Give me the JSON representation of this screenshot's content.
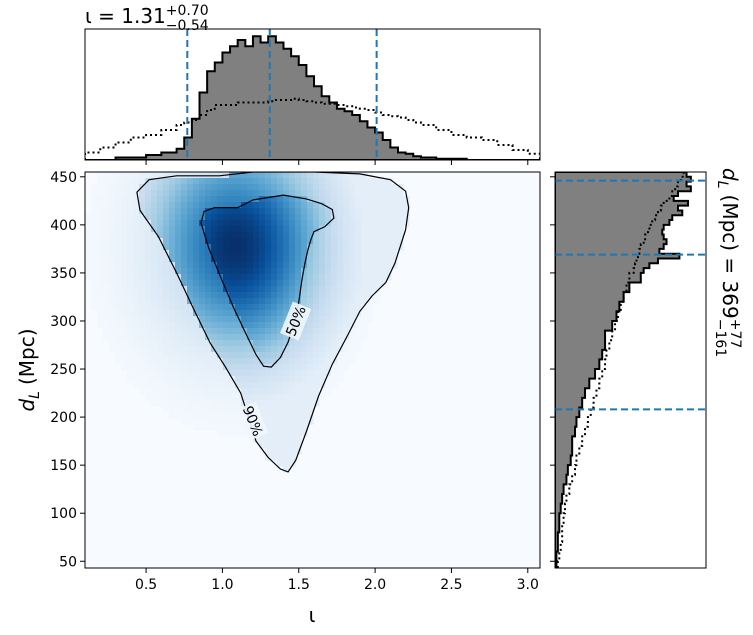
{
  "chart_data": [
    {
      "panel": "joint",
      "type": "heatmap",
      "xlabel": "ι",
      "ylabel_main": "d",
      "ylabel_sub": "L",
      "ylabel_unit": "(Mpc)",
      "xlim": [
        0.1,
        3.08
      ],
      "ylim": [
        43,
        455
      ],
      "xticks": [
        0.5,
        1.0,
        1.5,
        2.0,
        2.5,
        3.0
      ],
      "xtick_labels": [
        "0.5",
        "1.0",
        "1.5",
        "2.0",
        "2.5",
        "3.0"
      ],
      "yticks": [
        50,
        100,
        150,
        200,
        250,
        300,
        350,
        400,
        450
      ],
      "ytick_labels": [
        "50",
        "100",
        "150",
        "200",
        "250",
        "300",
        "350",
        "400",
        "450"
      ],
      "colormap": "Blues",
      "density_peak": {
        "x": 1.08,
        "y": 378
      },
      "contours": [
        {
          "label": "50%",
          "label_at": {
            "x": 1.48,
            "y": 300
          },
          "points": [
            [
              1.1,
              418
            ],
            [
              1.2,
              426
            ],
            [
              1.4,
              431
            ],
            [
              1.55,
              427
            ],
            [
              1.65,
              422
            ],
            [
              1.72,
              416
            ],
            [
              1.73,
              407
            ],
            [
              1.67,
              398
            ],
            [
              1.6,
              393
            ],
            [
              1.58,
              385
            ],
            [
              1.56,
              374
            ],
            [
              1.54,
              360
            ],
            [
              1.52,
              342
            ],
            [
              1.5,
              320
            ],
            [
              1.47,
              298
            ],
            [
              1.43,
              278
            ],
            [
              1.38,
              262
            ],
            [
              1.32,
              252
            ],
            [
              1.27,
              253
            ],
            [
              1.22,
              265
            ],
            [
              1.15,
              288
            ],
            [
              1.07,
              315
            ],
            [
              0.99,
              345
            ],
            [
              0.91,
              376
            ],
            [
              0.86,
              402
            ],
            [
              0.88,
              414
            ],
            [
              0.95,
              418
            ],
            [
              1.1,
              418
            ]
          ]
        },
        {
          "label": "90%",
          "label_at": {
            "x": 1.2,
            "y": 196
          },
          "points": [
            [
              0.98,
              451
            ],
            [
              1.2,
              455
            ],
            [
              1.6,
              455
            ],
            [
              1.9,
              453
            ],
            [
              2.1,
              447
            ],
            [
              2.2,
              435
            ],
            [
              2.22,
              418
            ],
            [
              2.2,
              395
            ],
            [
              2.13,
              360
            ],
            [
              2.07,
              340
            ],
            [
              1.98,
              326
            ],
            [
              1.9,
              310
            ],
            [
              1.82,
              285
            ],
            [
              1.72,
              255
            ],
            [
              1.63,
              222
            ],
            [
              1.55,
              185
            ],
            [
              1.48,
              155
            ],
            [
              1.43,
              143
            ],
            [
              1.38,
              146
            ],
            [
              1.3,
              158
            ],
            [
              1.22,
              175
            ],
            [
              1.17,
              200
            ],
            [
              1.12,
              225
            ],
            [
              1.02,
              252
            ],
            [
              0.92,
              277
            ],
            [
              0.81,
              313
            ],
            [
              0.7,
              350
            ],
            [
              0.58,
              388
            ],
            [
              0.46,
              415
            ],
            [
              0.44,
              434
            ],
            [
              0.52,
              447
            ],
            [
              0.7,
              451
            ],
            [
              0.98,
              451
            ]
          ]
        }
      ]
    },
    {
      "panel": "top-marginal",
      "type": "histogram",
      "title": "ι = 1.31",
      "title_sup": "+0.70",
      "title_sub": "−0.54",
      "quantile_lines": [
        0.77,
        1.31,
        2.01
      ],
      "bin_edges": [
        0.1,
        0.2,
        0.3,
        0.4,
        0.5,
        0.6,
        0.7,
        0.75,
        0.8,
        0.85,
        0.9,
        0.95,
        1.0,
        1.05,
        1.1,
        1.15,
        1.2,
        1.25,
        1.3,
        1.35,
        1.4,
        1.45,
        1.5,
        1.55,
        1.6,
        1.65,
        1.7,
        1.75,
        1.8,
        1.85,
        1.9,
        1.95,
        2.0,
        2.05,
        2.1,
        2.15,
        2.2,
        2.25,
        2.3,
        2.4,
        2.5,
        2.6,
        2.7,
        2.8,
        2.9,
        3.0,
        3.08
      ],
      "posterior": [
        0,
        0,
        0.02,
        0.02,
        0.04,
        0.06,
        0.09,
        0.18,
        0.33,
        0.54,
        0.71,
        0.78,
        0.86,
        0.91,
        0.96,
        0.91,
        0.99,
        0.94,
        0.99,
        0.94,
        0.89,
        0.83,
        0.76,
        0.67,
        0.59,
        0.51,
        0.46,
        0.41,
        0.39,
        0.36,
        0.31,
        0.26,
        0.22,
        0.16,
        0.1,
        0.06,
        0.05,
        0.03,
        0.02,
        0.01,
        0.01,
        0,
        0,
        0,
        0,
        0
      ],
      "prior": [
        0.06,
        0.1,
        0.14,
        0.18,
        0.2,
        0.24,
        0.28,
        0.3,
        0.32,
        0.36,
        0.4,
        0.44,
        0.44,
        0.44,
        0.46,
        0.46,
        0.46,
        0.46,
        0.47,
        0.48,
        0.48,
        0.49,
        0.48,
        0.47,
        0.46,
        0.45,
        0.45,
        0.44,
        0.43,
        0.42,
        0.41,
        0.4,
        0.38,
        0.36,
        0.35,
        0.34,
        0.32,
        0.3,
        0.28,
        0.24,
        0.2,
        0.18,
        0.16,
        0.12,
        0.08,
        0.05
      ]
    },
    {
      "panel": "right-marginal",
      "type": "histogram",
      "label_prefix": "d",
      "label_sub": "L",
      "label_mid": "(Mpc) = 369",
      "label_sup": "+77",
      "label_subscript": "−161",
      "quantile_lines": [
        208,
        369,
        446
      ],
      "bin_edges": [
        43,
        50,
        60,
        70,
        80,
        90,
        100,
        110,
        120,
        130,
        140,
        150,
        160,
        170,
        180,
        190,
        200,
        210,
        220,
        230,
        240,
        250,
        260,
        270,
        280,
        290,
        300,
        310,
        320,
        330,
        340,
        350,
        355,
        360,
        365,
        370,
        375,
        380,
        385,
        390,
        395,
        400,
        405,
        410,
        415,
        420,
        425,
        430,
        435,
        440,
        445,
        450,
        455
      ],
      "posterior": [
        0.01,
        0.01,
        0.02,
        0.02,
        0.03,
        0.03,
        0.04,
        0.05,
        0.06,
        0.08,
        0.09,
        0.11,
        0.12,
        0.12,
        0.14,
        0.15,
        0.17,
        0.19,
        0.21,
        0.24,
        0.28,
        0.31,
        0.33,
        0.35,
        0.35,
        0.4,
        0.43,
        0.45,
        0.48,
        0.52,
        0.6,
        0.62,
        0.66,
        0.72,
        0.87,
        0.73,
        0.76,
        0.78,
        0.76,
        0.75,
        0.76,
        0.8,
        0.82,
        0.89,
        0.86,
        0.93,
        0.83,
        0.86,
        0.95,
        0.92,
        0.95,
        0.92
      ],
      "prior": [
        0.02,
        0.03,
        0.04,
        0.05,
        0.05,
        0.06,
        0.07,
        0.08,
        0.1,
        0.12,
        0.14,
        0.15,
        0.17,
        0.19,
        0.21,
        0.23,
        0.25,
        0.27,
        0.29,
        0.31,
        0.33,
        0.35,
        0.36,
        0.38,
        0.4,
        0.42,
        0.44,
        0.46,
        0.48,
        0.5,
        0.52,
        0.55,
        0.56,
        0.57,
        0.58,
        0.59,
        0.6,
        0.62,
        0.63,
        0.65,
        0.66,
        0.68,
        0.7,
        0.72,
        0.74,
        0.76,
        0.8,
        0.82,
        0.84,
        0.86,
        0.88,
        0.9
      ]
    }
  ]
}
